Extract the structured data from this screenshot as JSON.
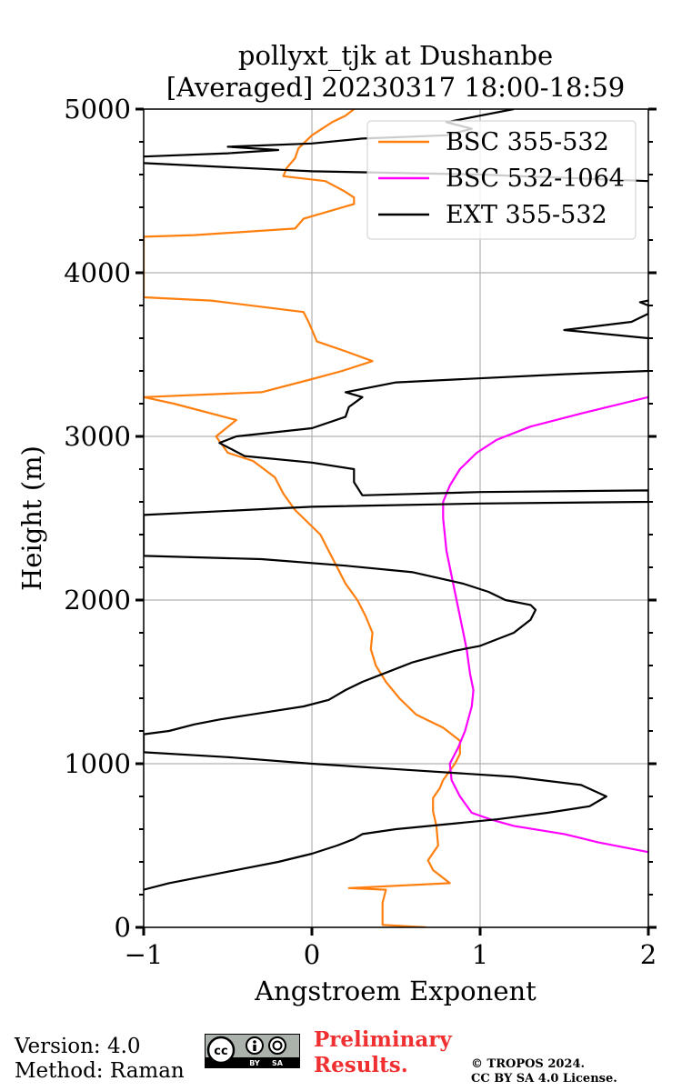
{
  "chart_data": {
    "type": "line",
    "title": "pollyxt_tjk at Dushanbe",
    "subtitle": "[Averaged] 20230317 18:00-18:59",
    "xlabel": "Angstroem Exponent",
    "ylabel": "Height (m)",
    "xlim": [
      -1,
      2
    ],
    "ylim": [
      0,
      5000
    ],
    "xticks": [
      -1,
      0,
      1,
      2
    ],
    "xtick_labels": [
      "−1",
      "0",
      "1",
      "2"
    ],
    "yticks": [
      0,
      1000,
      2000,
      3000,
      4000,
      5000
    ],
    "ytick_labels": [
      "0",
      "1000",
      "2000",
      "3000",
      "4000",
      "5000"
    ],
    "grid": true,
    "legend_position": "top-right",
    "series": [
      {
        "name": "BSC 355-532",
        "color": "#ff7f0e",
        "points": [
          [
            0.68,
            0
          ],
          [
            0.42,
            15
          ],
          [
            0.42,
            150
          ],
          [
            0.44,
            230
          ],
          [
            0.22,
            240
          ],
          [
            0.82,
            270
          ],
          [
            0.72,
            350
          ],
          [
            0.69,
            410
          ],
          [
            0.75,
            500
          ],
          [
            0.74,
            620
          ],
          [
            0.72,
            710
          ],
          [
            0.72,
            790
          ],
          [
            0.76,
            850
          ],
          [
            0.78,
            900
          ],
          [
            0.85,
            1000
          ],
          [
            0.88,
            1060
          ],
          [
            0.88,
            1140
          ],
          [
            0.78,
            1220
          ],
          [
            0.62,
            1300
          ],
          [
            0.52,
            1400
          ],
          [
            0.44,
            1500
          ],
          [
            0.38,
            1600
          ],
          [
            0.35,
            1700
          ],
          [
            0.36,
            1800
          ],
          [
            0.32,
            1900
          ],
          [
            0.27,
            2000
          ],
          [
            0.2,
            2100
          ],
          [
            0.15,
            2200
          ],
          [
            0.1,
            2300
          ],
          [
            0.05,
            2400
          ],
          [
            -0.1,
            2550
          ],
          [
            -0.17,
            2650
          ],
          [
            -0.22,
            2750
          ],
          [
            -0.35,
            2850
          ],
          [
            -0.5,
            2900
          ],
          [
            -0.57,
            3000
          ],
          [
            -0.45,
            3100
          ],
          [
            -0.82,
            3200
          ],
          [
            -1,
            3240
          ],
          [
            -0.3,
            3270
          ],
          [
            0.0,
            3350
          ],
          [
            0.18,
            3400
          ],
          [
            0.36,
            3460
          ],
          [
            0.2,
            3520
          ],
          [
            0.03,
            3580
          ],
          [
            -0.02,
            3700
          ],
          [
            -0.05,
            3760
          ],
          [
            -0.6,
            3830
          ],
          [
            -1,
            3850
          ],
          [
            -1,
            4220
          ],
          [
            -0.7,
            4230
          ],
          [
            -0.1,
            4270
          ],
          [
            -0.05,
            4330
          ],
          [
            0.25,
            4420
          ],
          [
            0.25,
            4460
          ],
          [
            0.19,
            4500
          ],
          [
            0.08,
            4560
          ],
          [
            -0.17,
            4590
          ],
          [
            -0.15,
            4640
          ],
          [
            -0.1,
            4700
          ],
          [
            -0.08,
            4760
          ],
          [
            0.0,
            4840
          ],
          [
            0.12,
            4920
          ],
          [
            0.2,
            4960
          ],
          [
            0.25,
            5000
          ]
        ]
      },
      {
        "name": "BSC 532-1064",
        "color": "#ff00ff",
        "points": [
          [
            2,
            460
          ],
          [
            1.7,
            520
          ],
          [
            1.5,
            570
          ],
          [
            1.2,
            620
          ],
          [
            1.06,
            660
          ],
          [
            0.95,
            700
          ],
          [
            0.88,
            800
          ],
          [
            0.83,
            900
          ],
          [
            0.82,
            1000
          ],
          [
            0.87,
            1100
          ],
          [
            0.91,
            1200
          ],
          [
            0.95,
            1350
          ],
          [
            0.96,
            1450
          ],
          [
            0.94,
            1550
          ],
          [
            0.92,
            1700
          ],
          [
            0.88,
            1900
          ],
          [
            0.84,
            2100
          ],
          [
            0.8,
            2300
          ],
          [
            0.78,
            2500
          ],
          [
            0.78,
            2600
          ],
          [
            0.82,
            2700
          ],
          [
            0.88,
            2800
          ],
          [
            0.98,
            2900
          ],
          [
            1.1,
            2980
          ],
          [
            1.3,
            3060
          ],
          [
            1.6,
            3140
          ],
          [
            2,
            3240
          ]
        ]
      },
      {
        "name": "EXT 355-532",
        "color": "#000000",
        "points": [
          [
            -1,
            230
          ],
          [
            -0.85,
            270
          ],
          [
            -0.6,
            320
          ],
          [
            -0.4,
            360
          ],
          [
            -0.2,
            400
          ],
          [
            0.0,
            450
          ],
          [
            0.15,
            500
          ],
          [
            0.25,
            540
          ],
          [
            0.3,
            570
          ],
          [
            0.5,
            600
          ],
          [
            0.8,
            630
          ],
          [
            1.1,
            660
          ],
          [
            1.4,
            700
          ],
          [
            1.65,
            740
          ],
          [
            1.75,
            800
          ],
          [
            1.6,
            870
          ],
          [
            1.2,
            920
          ],
          [
            0.6,
            960
          ],
          [
            0.0,
            1000
          ],
          [
            -0.5,
            1040
          ],
          [
            -1,
            1070
          ],
          [
            -1,
            1180
          ],
          [
            -0.85,
            1200
          ],
          [
            -0.7,
            1240
          ],
          [
            -0.55,
            1270
          ],
          [
            -0.3,
            1310
          ],
          [
            -0.05,
            1350
          ],
          [
            0.1,
            1390
          ],
          [
            0.2,
            1450
          ],
          [
            0.3,
            1500
          ],
          [
            0.45,
            1560
          ],
          [
            0.6,
            1620
          ],
          [
            0.85,
            1690
          ],
          [
            1.0,
            1720
          ],
          [
            1.2,
            1800
          ],
          [
            1.25,
            1840
          ],
          [
            1.3,
            1880
          ],
          [
            1.33,
            1940
          ],
          [
            1.3,
            1970
          ],
          [
            1.15,
            2000
          ],
          [
            1.05,
            2050
          ],
          [
            0.9,
            2100
          ],
          [
            0.6,
            2170
          ],
          [
            0.2,
            2210
          ],
          [
            -0.3,
            2250
          ],
          [
            -1,
            2270
          ],
          [
            -1,
            2520
          ],
          [
            0.0,
            2570
          ],
          [
            1.0,
            2590
          ],
          [
            2,
            2600
          ],
          [
            2,
            2670
          ],
          [
            1.0,
            2660
          ],
          [
            0.3,
            2640
          ],
          [
            0.25,
            2720
          ],
          [
            0.25,
            2800
          ],
          [
            0.0,
            2840
          ],
          [
            -0.4,
            2880
          ],
          [
            -0.55,
            2960
          ],
          [
            -0.45,
            3000
          ],
          [
            0.0,
            3050
          ],
          [
            0.2,
            3120
          ],
          [
            0.22,
            3180
          ],
          [
            0.3,
            3240
          ],
          [
            0.2,
            3270
          ],
          [
            0.5,
            3330
          ],
          [
            1.5,
            3380
          ],
          [
            2,
            3400
          ],
          [
            2,
            3600
          ],
          [
            1.5,
            3650
          ],
          [
            1.9,
            3700
          ],
          [
            2,
            3750
          ],
          [
            2,
            3800
          ],
          [
            1.95,
            3820
          ],
          [
            2,
            3830
          ]
        ],
        "segments2": [
          [
            -1,
            4670
          ],
          [
            0.0,
            4620
          ],
          [
            1.0,
            4600
          ],
          [
            2,
            4560
          ]
        ],
        "segments3": [
          [
            -1,
            4710
          ],
          [
            -0.5,
            4730
          ],
          [
            -0.2,
            4750
          ],
          [
            -0.5,
            4770
          ],
          [
            0.0,
            4790
          ],
          [
            0.3,
            4820
          ],
          [
            0.8,
            4840
          ],
          [
            0.95,
            4880
          ],
          [
            0.8,
            4920
          ],
          [
            1.0,
            4960
          ],
          [
            1.2,
            5000
          ]
        ]
      }
    ]
  },
  "footer": {
    "version": "Version: 4.0",
    "method": "Method: Raman",
    "prelim_line1": "Preliminary",
    "prelim_line2": "Results.",
    "copyright_line1": "© TROPOS 2024.",
    "copyright_line2": "CC BY SA 4.0 License."
  },
  "badge": {
    "cc": "cc",
    "by": "BY",
    "sa": "SA"
  }
}
